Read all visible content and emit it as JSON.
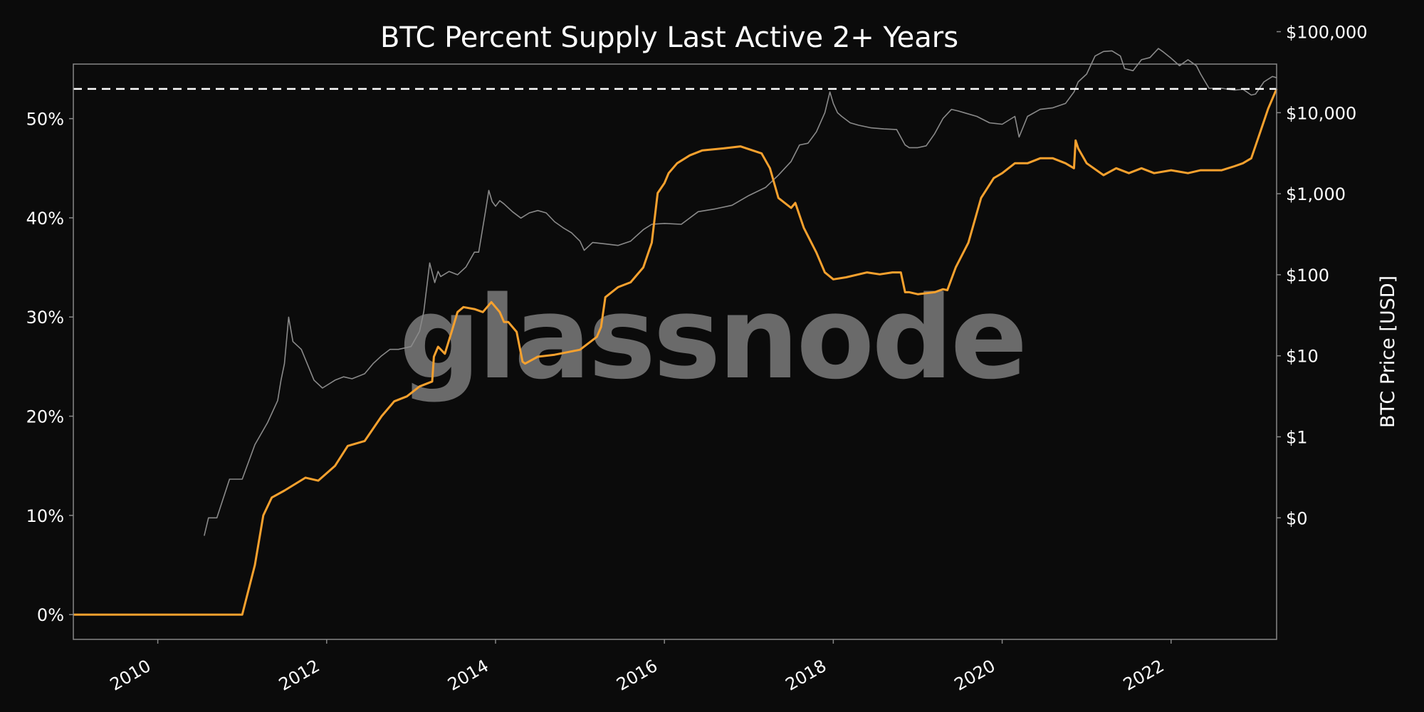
{
  "chart_data": {
    "type": "line",
    "title": "BTC Percent Supply Last Active 2+ Years",
    "xlabel": "",
    "ylabel": "",
    "y2label": "BTC Price [USD]",
    "watermark": "glassnode",
    "xlim": [
      2009.0,
      2023.25
    ],
    "ylim": [
      -2.5,
      55.5
    ],
    "y2lim_log10": [
      -2.5,
      4.6
    ],
    "x_ticks": [
      2010,
      2012,
      2014,
      2016,
      2018,
      2020,
      2022
    ],
    "x_tick_labels": [
      "2010",
      "2012",
      "2014",
      "2016",
      "2018",
      "2020",
      "2022"
    ],
    "y_ticks": [
      0,
      10,
      20,
      30,
      40,
      50
    ],
    "y_tick_labels": [
      "0%",
      "10%",
      "20%",
      "30%",
      "40%",
      "50%"
    ],
    "y2_ticks_log10": [
      -1,
      0,
      1,
      2,
      3,
      4,
      5
    ],
    "y2_tick_labels": [
      "$0",
      "$1",
      "$10",
      "$100",
      "$1,000",
      "$10,000",
      "$100,000"
    ],
    "reference_line": {
      "y": 53.0,
      "style": "dashed",
      "color": "#ffffff"
    },
    "colors": {
      "supply": "#f7a12e",
      "price": "#8a8a8a",
      "background": "#0b0b0b",
      "axes_frame": "#888888"
    },
    "grid": false,
    "legend": "none",
    "series": [
      {
        "axis": "left",
        "x": [
          2009.0,
          2011.0,
          2011.15,
          2011.25,
          2011.35,
          2011.5,
          2011.75,
          2011.9,
          2012.1,
          2012.25,
          2012.45,
          2012.65,
          2012.8,
          2012.95,
          2013.1,
          2013.25,
          2013.27,
          2013.32,
          2013.4,
          2013.48,
          2013.55,
          2013.62,
          2013.75,
          2013.85,
          2013.95,
          2014.05,
          2014.1,
          2014.15,
          2014.25,
          2014.32,
          2014.35,
          2014.5,
          2014.7,
          2015.0,
          2015.2,
          2015.25,
          2015.3,
          2015.45,
          2015.6,
          2015.75,
          2015.85,
          2015.92,
          2016.0,
          2016.05,
          2016.15,
          2016.3,
          2016.45,
          2016.7,
          2016.9,
          2017.15,
          2017.25,
          2017.35,
          2017.5,
          2017.55,
          2017.65,
          2017.8,
          2017.9,
          2018.0,
          2018.15,
          2018.4,
          2018.55,
          2018.7,
          2018.8,
          2018.85,
          2018.9,
          2019.0,
          2019.2,
          2019.3,
          2019.35,
          2019.45,
          2019.6,
          2019.75,
          2019.9,
          2020.0,
          2020.15,
          2020.3,
          2020.45,
          2020.6,
          2020.75,
          2020.85,
          2020.87,
          2020.9,
          2021.0,
          2021.2,
          2021.35,
          2021.5,
          2021.65,
          2021.8,
          2022.0,
          2022.2,
          2022.35,
          2022.6,
          2022.75,
          2022.85,
          2022.95,
          2023.05,
          2023.15,
          2023.25
        ],
        "values": [
          0,
          0,
          5,
          10,
          11.8,
          12.5,
          13.8,
          13.5,
          15,
          17,
          17.5,
          20,
          21.5,
          22,
          23,
          23.5,
          26,
          27,
          26.3,
          28.5,
          30.5,
          31,
          30.8,
          30.5,
          31.5,
          30.5,
          29.5,
          29.5,
          28.5,
          25.5,
          25.3,
          26,
          26.2,
          26.7,
          28,
          29,
          32,
          33,
          33.5,
          35,
          37.5,
          42.5,
          43.5,
          44.5,
          45.5,
          46.3,
          46.8,
          47,
          47.2,
          46.5,
          45,
          42,
          41,
          41.5,
          39,
          36.5,
          34.5,
          33.8,
          34,
          34.5,
          34.3,
          34.5,
          34.5,
          32.5,
          32.5,
          32.3,
          32.5,
          32.8,
          32.7,
          35,
          37.5,
          42,
          44,
          44.5,
          45.5,
          45.5,
          46,
          46,
          45.5,
          45,
          47.8,
          47,
          45.5,
          44.3,
          45,
          44.5,
          45,
          44.5,
          44.8,
          44.5,
          44.8,
          44.8,
          45.2,
          45.5,
          46,
          48.5,
          51,
          53
        ]
      },
      {
        "axis": "right",
        "x": [
          2010.55,
          2010.6,
          2010.7,
          2010.85,
          2011.0,
          2011.15,
          2011.3,
          2011.42,
          2011.46,
          2011.5,
          2011.55,
          2011.6,
          2011.7,
          2011.85,
          2011.95,
          2012.1,
          2012.2,
          2012.3,
          2012.45,
          2012.55,
          2012.65,
          2012.75,
          2012.85,
          2013.0,
          2013.1,
          2013.15,
          2013.22,
          2013.28,
          2013.32,
          2013.35,
          2013.45,
          2013.55,
          2013.65,
          2013.75,
          2013.8,
          2013.88,
          2013.92,
          2013.96,
          2014.0,
          2014.05,
          2014.1,
          2014.2,
          2014.3,
          2014.4,
          2014.5,
          2014.6,
          2014.7,
          2014.8,
          2014.9,
          2015.0,
          2015.05,
          2015.15,
          2015.3,
          2015.45,
          2015.6,
          2015.75,
          2015.85,
          2016.0,
          2016.2,
          2016.4,
          2016.6,
          2016.8,
          2017.0,
          2017.2,
          2017.35,
          2017.5,
          2017.6,
          2017.7,
          2017.8,
          2017.9,
          2017.96,
          2018.0,
          2018.05,
          2018.1,
          2018.2,
          2018.3,
          2018.45,
          2018.6,
          2018.75,
          2018.85,
          2018.9,
          2019.0,
          2019.1,
          2019.2,
          2019.3,
          2019.4,
          2019.48,
          2019.55,
          2019.7,
          2019.85,
          2020.0,
          2020.15,
          2020.2,
          2020.3,
          2020.45,
          2020.6,
          2020.75,
          2020.85,
          2020.9,
          2021.0,
          2021.1,
          2021.2,
          2021.3,
          2021.4,
          2021.45,
          2021.55,
          2021.65,
          2021.75,
          2021.85,
          2021.9,
          2022.0,
          2022.1,
          2022.2,
          2022.3,
          2022.35,
          2022.45,
          2022.6,
          2022.75,
          2022.85,
          2022.95,
          2023.0,
          2023.1,
          2023.2,
          2023.25
        ],
        "values": [
          0.06,
          0.1,
          0.1,
          0.3,
          0.3,
          0.8,
          1.5,
          2.8,
          5,
          8,
          30,
          15,
          12,
          5,
          4,
          5,
          5.5,
          5.2,
          6,
          8,
          10,
          12,
          12,
          13,
          20,
          35,
          140,
          80,
          110,
          95,
          110,
          100,
          125,
          190,
          190,
          600,
          1100,
          800,
          700,
          820,
          750,
          600,
          500,
          580,
          620,
          580,
          450,
          380,
          330,
          260,
          200,
          250,
          240,
          230,
          260,
          360,
          420,
          430,
          420,
          600,
          650,
          720,
          950,
          1200,
          1700,
          2500,
          4000,
          4200,
          5800,
          10000,
          18000,
          13000,
          10000,
          9000,
          7500,
          7000,
          6500,
          6300,
          6200,
          4000,
          3700,
          3700,
          3900,
          5500,
          8500,
          11000,
          10500,
          10000,
          9000,
          7500,
          7200,
          9000,
          5000,
          9000,
          11000,
          11500,
          13000,
          18000,
          24000,
          30000,
          50000,
          57000,
          58000,
          50000,
          35000,
          33000,
          45000,
          48000,
          62000,
          57000,
          47000,
          38000,
          45000,
          38000,
          30000,
          20000,
          20000,
          19000,
          19500,
          16500,
          17000,
          24000,
          28000,
          27000
        ]
      }
    ]
  }
}
